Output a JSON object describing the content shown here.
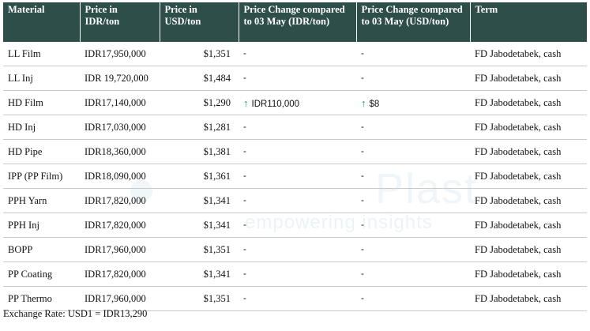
{
  "table": {
    "headers": [
      "Material",
      "Price in IDR/ton",
      "Price in USD/ton",
      "Price Change compared to 03 May (IDR/ton)",
      "Price Change compared to 03 May (USD/ton)",
      "Term"
    ],
    "rows": [
      {
        "material": "LL Film",
        "idr": "IDR17,950,000",
        "usd": "$1,351",
        "chg_idr": "-",
        "chg_usd": "-",
        "term": "FD Jabodetabek, cash",
        "up": false
      },
      {
        "material": "LL Inj",
        "idr": "IDR 19,720,000",
        "usd": "$1,484",
        "chg_idr": "-",
        "chg_usd": "-",
        "term": "FD Jabodetabek, cash",
        "up": false
      },
      {
        "material": "HD Film",
        "idr": "IDR17,140,000",
        "usd": "$1,290",
        "chg_idr": "IDR110,000",
        "chg_usd": "$8",
        "term": "FD Jabodetabek, cash",
        "up": true
      },
      {
        "material": "HD Inj",
        "idr": "IDR17,030,000",
        "usd": "$1,281",
        "chg_idr": "-",
        "chg_usd": "-",
        "term": "FD Jabodetabek, cash",
        "up": false
      },
      {
        "material": "HD Pipe",
        "idr": "IDR18,360,000",
        "usd": "$1,381",
        "chg_idr": "-",
        "chg_usd": "-",
        "term": "FD Jabodetabek, cash",
        "up": false
      },
      {
        "material": "IPP (PP Film)",
        "idr": "IDR18,090,000",
        "usd": "$1,361",
        "chg_idr": "-",
        "chg_usd": "-",
        "term": "FD Jabodetabek, cash",
        "up": false
      },
      {
        "material": "PPH Yarn",
        "idr": "IDR17,820,000",
        "usd": "$1,341",
        "chg_idr": "-",
        "chg_usd": "-",
        "term": "FD Jabodetabek, cash",
        "up": false
      },
      {
        "material": "PPH Inj",
        "idr": "IDR17,820,000",
        "usd": "$1,341",
        "chg_idr": "-",
        "chg_usd": "-",
        "term": "FD Jabodetabek, cash",
        "up": false
      },
      {
        "material": "BOPP",
        "idr": "IDR17,960,000",
        "usd": "$1,351",
        "chg_idr": "-",
        "chg_usd": "-",
        "term": "FD Jabodetabek, cash",
        "up": false
      },
      {
        "material": "PP Coating",
        "idr": "IDR17,820,000",
        "usd": "$1,341",
        "chg_idr": "-",
        "chg_usd": "-",
        "term": "FD Jabodetabek, cash",
        "up": false
      },
      {
        "material": "PP Thermo",
        "idr": "IDR17,960,000",
        "usd": "$1,351",
        "chg_idr": "-",
        "chg_usd": "-",
        "term": "FD Jabodetabek, cash",
        "up": false
      }
    ]
  },
  "footer": {
    "exchange_rate": "Exchange Rate: USD1 = IDR13,290"
  },
  "watermark": {
    "brand": "Plast",
    "tagline": "empowering insights"
  },
  "colors": {
    "header_bg": "#2e4e4a",
    "up_arrow": "#1aa34a"
  },
  "icons": {
    "increase": "arrow-up-icon"
  }
}
